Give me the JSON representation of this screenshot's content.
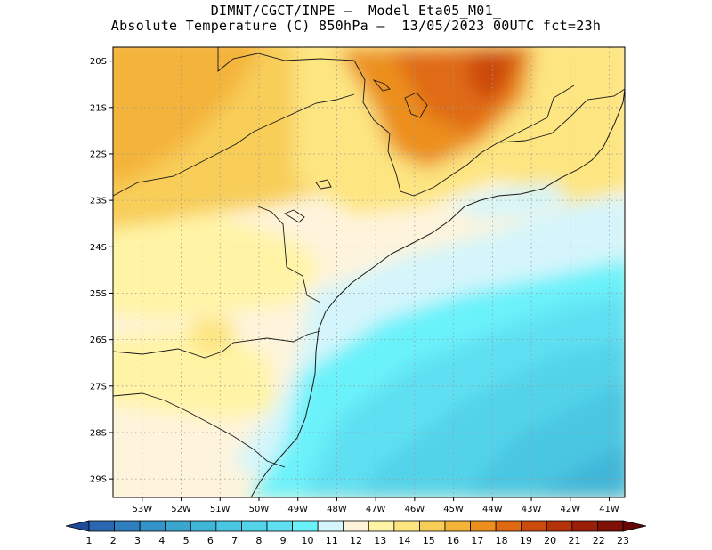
{
  "title": {
    "line1": "DIMNT/CGCT/INPE –  Model Eta05_M01_",
    "line2": "Absolute Temperature (C) 850hPa –  13/05/2023 00UTC fct=23h"
  },
  "map": {
    "lat_labels": [
      "20S",
      "21S",
      "22S",
      "23S",
      "24S",
      "25S",
      "26S",
      "27S",
      "28S",
      "29S"
    ],
    "lon_labels": [
      "53W",
      "52W",
      "51W",
      "50W",
      "49W",
      "48W",
      "47W",
      "46W",
      "45W",
      "44W",
      "43W",
      "42W",
      "41W"
    ],
    "lat_range": [
      19.7,
      29.4
    ],
    "lon_range": [
      53.75,
      40.6
    ],
    "grid": "dotted"
  },
  "colorbar": {
    "labels": [
      "1",
      "2",
      "3",
      "4",
      "5",
      "6",
      "7",
      "8",
      "9",
      "10",
      "11",
      "12",
      "13",
      "14",
      "15",
      "16",
      "17",
      "18",
      "19",
      "20",
      "21",
      "22",
      "23"
    ],
    "colors": [
      "#1e4a9a",
      "#2a67b2",
      "#2f7fc0",
      "#3493c8",
      "#3aa5cf",
      "#3fb6d8",
      "#49c6e2",
      "#52d3ea",
      "#5ee0f2",
      "#6af2fa",
      "#d4f5fb",
      "#fef4dc",
      "#fff4a6",
      "#fde581",
      "#f8cd58",
      "#f4b43a",
      "#ec8f1c",
      "#e06a12",
      "#cc4a0c",
      "#b43208",
      "#9a1f08",
      "#7e1008",
      "#660808"
    ]
  }
}
